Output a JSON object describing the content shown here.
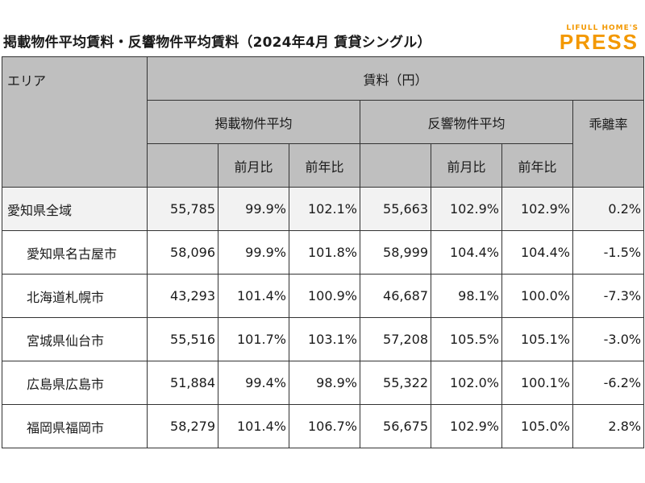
{
  "title": "掲載物件平均賃料・反響物件平均賃料（2024年4月 賃貸シングル）",
  "logo": {
    "top": "LIFULL HOME'S",
    "main": "PRESS"
  },
  "header": {
    "area": "エリア",
    "rent": "賃料（円）",
    "listing_avg": "掲載物件平均",
    "response_avg": "反響物件平均",
    "divergence": "乖離率",
    "mom": "前月比",
    "yoy": "前年比"
  },
  "rows": [
    {
      "area": "愛知県全域",
      "listing": "55,785",
      "listing_mom": "99.9%",
      "listing_yoy": "102.1%",
      "response": "55,663",
      "response_mom": "102.9%",
      "response_yoy": "102.9%",
      "divergence": "0.2%"
    },
    {
      "area": "愛知県名古屋市",
      "listing": "58,096",
      "listing_mom": "99.9%",
      "listing_yoy": "101.8%",
      "response": "58,999",
      "response_mom": "104.4%",
      "response_yoy": "104.4%",
      "divergence": "-1.5%"
    },
    {
      "area": "北海道札幌市",
      "listing": "43,293",
      "listing_mom": "101.4%",
      "listing_yoy": "100.9%",
      "response": "46,687",
      "response_mom": "98.1%",
      "response_yoy": "100.0%",
      "divergence": "-7.3%"
    },
    {
      "area": "宮城県仙台市",
      "listing": "55,516",
      "listing_mom": "101.7%",
      "listing_yoy": "103.1%",
      "response": "57,208",
      "response_mom": "105.5%",
      "response_yoy": "105.1%",
      "divergence": "-3.0%"
    },
    {
      "area": "広島県広島市",
      "listing": "51,884",
      "listing_mom": "99.4%",
      "listing_yoy": "98.9%",
      "response": "55,322",
      "response_mom": "102.0%",
      "response_yoy": "100.1%",
      "divergence": "-6.2%"
    },
    {
      "area": "福岡県福岡市",
      "listing": "58,279",
      "listing_mom": "101.4%",
      "listing_yoy": "106.7%",
      "response": "56,675",
      "response_mom": "102.9%",
      "response_yoy": "105.0%",
      "divergence": "2.8%"
    }
  ]
}
